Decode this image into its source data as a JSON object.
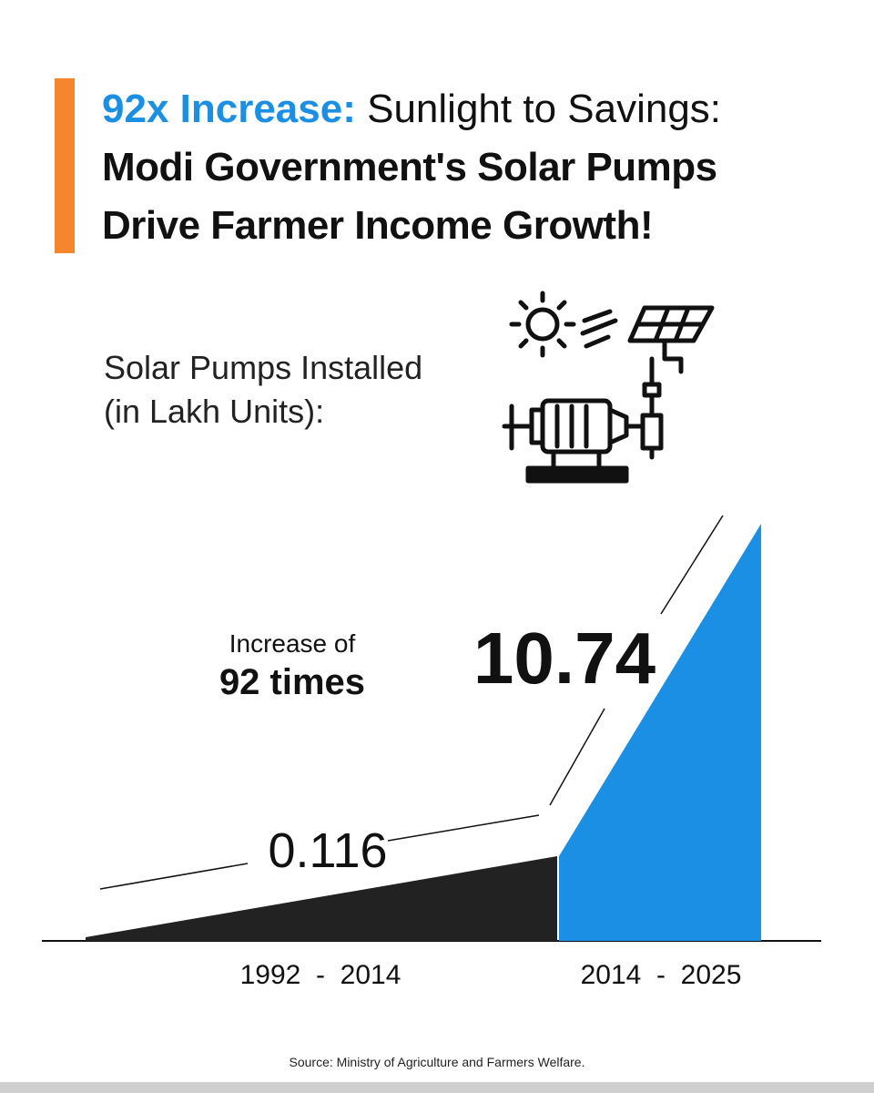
{
  "header": {
    "highlight": "92x Increase:",
    "lead": "Sunlight to Savings:",
    "line2": "Modi Government's Solar Pumps",
    "line3": "Drive Farmer Income Growth!",
    "accent_color": "#f5862d",
    "highlight_color": "#1a8fe3"
  },
  "subtitle": {
    "line1": "Solar Pumps Installed",
    "line2": "(in Lakh Units):"
  },
  "icon": "solar-pump-icon",
  "chart_data": {
    "type": "area",
    "title": "Solar Pumps Installed (in Lakh Units)",
    "categories": [
      "1992  -  2014",
      "2014  -  2025"
    ],
    "values": [
      0.116,
      10.74
    ],
    "value_labels": [
      "0.116",
      "10.74"
    ],
    "annotation": {
      "line1": "Increase of",
      "line2": "92 times"
    },
    "colors": [
      "#222222",
      "#1a8fe3"
    ],
    "ylim": [
      0,
      10.74
    ]
  },
  "source": "Source: Ministry of Agriculture and Farmers Welfare."
}
